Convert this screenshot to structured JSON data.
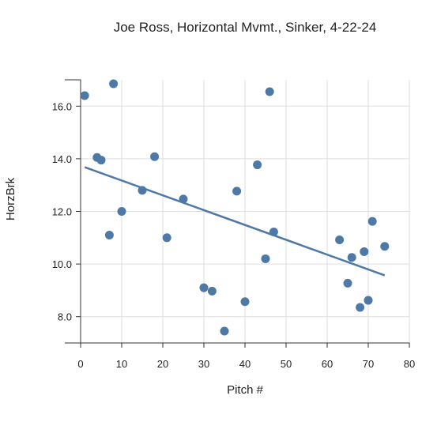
{
  "chart_data": {
    "type": "scatter",
    "title": "Joe Ross, Horizontal Mvmt., Sinker, 4-22-24",
    "xlabel": "Pitch #",
    "ylabel": "HorzBrk",
    "xlim": [
      0,
      80
    ],
    "ylim": [
      7,
      17
    ],
    "xticks": [
      0,
      10,
      20,
      30,
      40,
      50,
      60,
      70,
      80
    ],
    "xtick_labels": [
      "0",
      "10",
      "20",
      "30",
      "40",
      "50",
      "60",
      "70",
      "80"
    ],
    "yticks": [
      8,
      10,
      12,
      14,
      16
    ],
    "ytick_labels": [
      "8.0",
      "10.0",
      "12.0",
      "14.0",
      "16.0"
    ],
    "grid": true,
    "colors": {
      "points": "#4e79a7",
      "trendline": "#4e79a7",
      "grid": "#dddddd",
      "axis": "#333333"
    },
    "points": [
      {
        "x": 1,
        "y": 16.4
      },
      {
        "x": 4,
        "y": 14.05
      },
      {
        "x": 5,
        "y": 13.95
      },
      {
        "x": 7,
        "y": 11.1
      },
      {
        "x": 8,
        "y": 16.85
      },
      {
        "x": 10,
        "y": 12.0
      },
      {
        "x": 15,
        "y": 12.8
      },
      {
        "x": 18,
        "y": 14.08
      },
      {
        "x": 21,
        "y": 11.0
      },
      {
        "x": 25,
        "y": 12.47
      },
      {
        "x": 30,
        "y": 9.1
      },
      {
        "x": 32,
        "y": 8.97
      },
      {
        "x": 35,
        "y": 7.45
      },
      {
        "x": 38,
        "y": 12.77
      },
      {
        "x": 40,
        "y": 8.57
      },
      {
        "x": 43,
        "y": 13.77
      },
      {
        "x": 45,
        "y": 10.2
      },
      {
        "x": 46,
        "y": 16.55
      },
      {
        "x": 47,
        "y": 11.22
      },
      {
        "x": 63,
        "y": 10.92
      },
      {
        "x": 65,
        "y": 9.27
      },
      {
        "x": 66,
        "y": 10.25
      },
      {
        "x": 68,
        "y": 8.35
      },
      {
        "x": 69,
        "y": 10.47
      },
      {
        "x": 70,
        "y": 8.62
      },
      {
        "x": 71,
        "y": 11.62
      },
      {
        "x": 74,
        "y": 10.67
      }
    ],
    "trendline": {
      "x": [
        1,
        74
      ],
      "y": [
        13.68,
        9.57
      ]
    }
  }
}
